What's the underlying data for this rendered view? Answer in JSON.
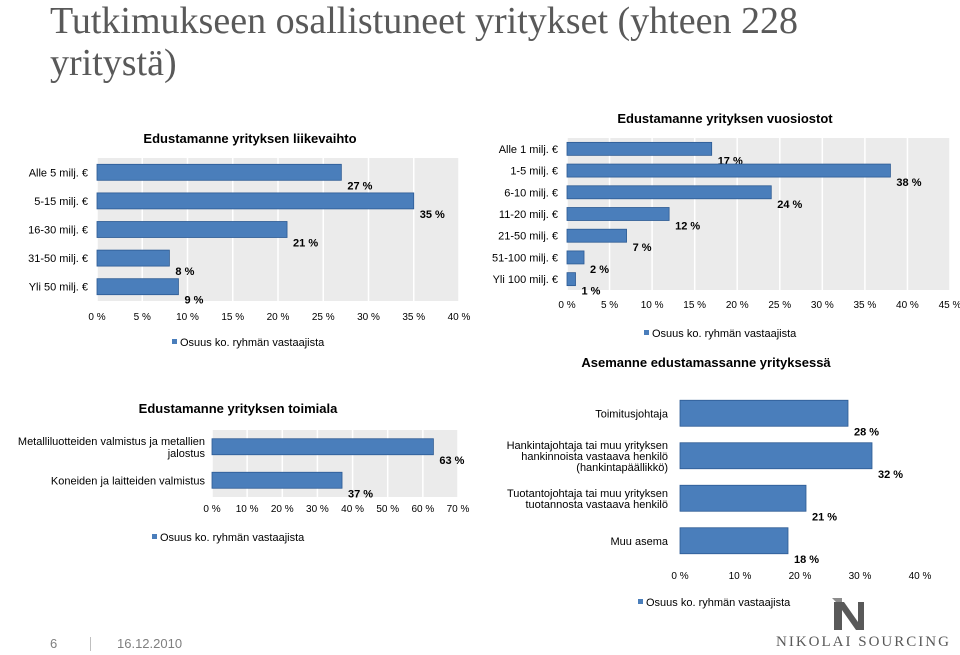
{
  "slide": {
    "title": "Tutkimukseen osallistuneet yritykset (yhteen 228 yritystä)",
    "page_number": "6",
    "date": "16.12.2010",
    "company": "NIKOLAI SOURCING"
  },
  "colors": {
    "bar": "#4a7ebb",
    "bar_dark": "#2c5a93",
    "plot_bg": "#ebebeb",
    "grid": "#ffffff"
  },
  "chart_data": [
    {
      "type": "bar",
      "orientation": "horizontal",
      "title": "Edustamanne yrityksen liikevaihto",
      "categories": [
        "Alle 5 milj. €",
        "5-15 milj. €",
        "16-30 milj. €",
        "31-50 milj. €",
        "Yli 50 milj. €"
      ],
      "values": [
        27,
        35,
        21,
        8,
        9
      ],
      "value_labels": [
        "27 %",
        "35 %",
        "21 %",
        "8 %",
        "9 %"
      ],
      "xlim": [
        0,
        40
      ],
      "ticks": [
        "0 %",
        "5 %",
        "10 %",
        "15 %",
        "20 %",
        "25 %",
        "30 %",
        "35 %",
        "40 %"
      ],
      "legend": "Osuus ko. ryhmän vastaajista",
      "legend_position": "bottom",
      "grid": true
    },
    {
      "type": "bar",
      "orientation": "horizontal",
      "title": "Edustamanne yrityksen vuosiostot",
      "categories": [
        "Alle 1 milj. €",
        "1-5 milj. €",
        "6-10 milj. €",
        "11-20 milj. €",
        "21-50 milj. €",
        "51-100 milj. €",
        "Yli 100 milj. €"
      ],
      "values": [
        17,
        38,
        24,
        12,
        7,
        2,
        1
      ],
      "value_labels": [
        "17 %",
        "38 %",
        "24 %",
        "12 %",
        "7 %",
        "2 %",
        "1 %"
      ],
      "xlim": [
        0,
        45
      ],
      "ticks": [
        "0 %",
        "5 %",
        "10 %",
        "15 %",
        "20 %",
        "25 %",
        "30 %",
        "35 %",
        "40 %",
        "45 %"
      ],
      "legend": "Osuus ko. ryhmän vastaajista",
      "legend_position": "bottom",
      "grid": true
    },
    {
      "type": "bar",
      "orientation": "horizontal",
      "title": "Edustamanne yrityksen toimiala",
      "categories": [
        [
          "Metalliluotteiden valmistus ja metallien",
          "jalostus"
        ],
        [
          "Koneiden ja laitteiden valmistus"
        ]
      ],
      "values": [
        63,
        37
      ],
      "value_labels": [
        "63 %",
        "37 %"
      ],
      "xlim": [
        0,
        70
      ],
      "ticks": [
        "0 %",
        "10 %",
        "20 %",
        "30 %",
        "40 %",
        "50 %",
        "60 %",
        "70 %"
      ],
      "legend": "Osuus ko. ryhmän vastaajista",
      "legend_position": "bottom",
      "grid": true
    },
    {
      "type": "bar",
      "orientation": "horizontal",
      "title": "Asemanne edustamassanne yrityksessä",
      "categories": [
        [
          "Toimitusjohtaja"
        ],
        [
          "Hankintajohtaja tai muu yrityksen",
          "hankinnoista vastaava henkilö",
          "(hankintapäällikkö)"
        ],
        [
          "Tuotantojohtaja tai muu yrityksen",
          "tuotannosta vastaava henkilö"
        ],
        [
          "Muu asema"
        ]
      ],
      "values": [
        28,
        32,
        21,
        18
      ],
      "value_labels": [
        "28 %",
        "32 %",
        "21 %",
        "18 %"
      ],
      "xlim": [
        0,
        40
      ],
      "ticks": [
        "0 %",
        "10 %",
        "20 %",
        "30 %",
        "40 %"
      ],
      "legend": "Osuus ko. ryhmän vastaajista",
      "legend_position": "bottom",
      "grid": false
    }
  ]
}
